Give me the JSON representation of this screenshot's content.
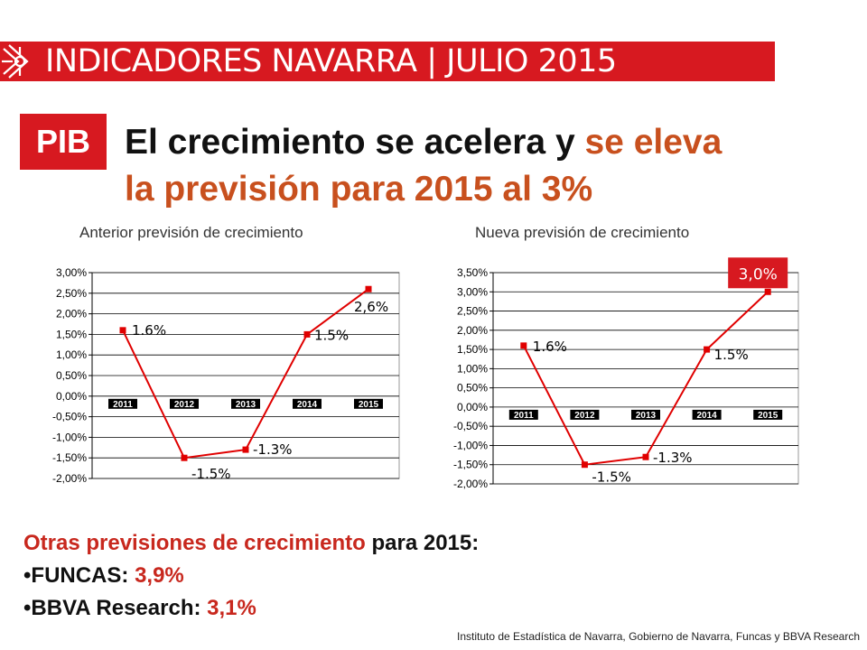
{
  "header": {
    "banner_title": "INDICADORES NAVARRA | JULIO 2015",
    "badge": "PIB",
    "headline_part1": "El crecimiento se acelera y ",
    "headline_part2": "se eleva",
    "headline_part3": "la previsión para 2015 al 3%"
  },
  "colors": {
    "brand_red": "#d71920",
    "accent_orange": "#c8501e",
    "line_red": "#e00000"
  },
  "chart_data": [
    {
      "type": "line",
      "title": "Anterior previsión de crecimiento",
      "categories": [
        "2011",
        "2012",
        "2013",
        "2014",
        "2015"
      ],
      "values": [
        1.6,
        -1.5,
        -1.3,
        1.5,
        2.6
      ],
      "data_labels": [
        "1.6%",
        "-1.5%",
        "-1.3%",
        "1.5%",
        "2,6%"
      ],
      "ylim": [
        -2.0,
        3.0
      ],
      "yticks": [
        "3,00%",
        "2,50%",
        "2,00%",
        "1,50%",
        "1,00%",
        "0,50%",
        "0,00%",
        "-0,50%",
        "-1,00%",
        "-1,50%",
        "-2,00%"
      ],
      "grid": true,
      "legend": "none"
    },
    {
      "type": "line",
      "title": "Nueva previsión de crecimiento",
      "categories": [
        "2011",
        "2012",
        "2013",
        "2014",
        "2015"
      ],
      "values": [
        1.6,
        -1.5,
        -1.3,
        1.5,
        3.0
      ],
      "data_labels": [
        "1.6%",
        "-1.5%",
        "-1.3%",
        "1.5%",
        "3,0%"
      ],
      "ylim": [
        -2.0,
        3.5
      ],
      "yticks": [
        "3,50%",
        "3,00%",
        "2,50%",
        "2,00%",
        "1,50%",
        "1,00%",
        "0,50%",
        "0,00%",
        "-0,50%",
        "-1,00%",
        "-1,50%",
        "-2,00%"
      ],
      "grid": true,
      "legend": "none",
      "highlight_last": true
    }
  ],
  "other_forecasts": {
    "heading_red": "Otras previsiones de crecimiento",
    "heading_black": " para 2015:",
    "items": [
      {
        "label": "•FUNCAS: ",
        "value": "3,9%"
      },
      {
        "label": "•BBVA Research: ",
        "value": "3,1%"
      }
    ]
  },
  "source": "Instituto de Estadística de Navarra, Gobierno de Navarra, Funcas y BBVA Research"
}
